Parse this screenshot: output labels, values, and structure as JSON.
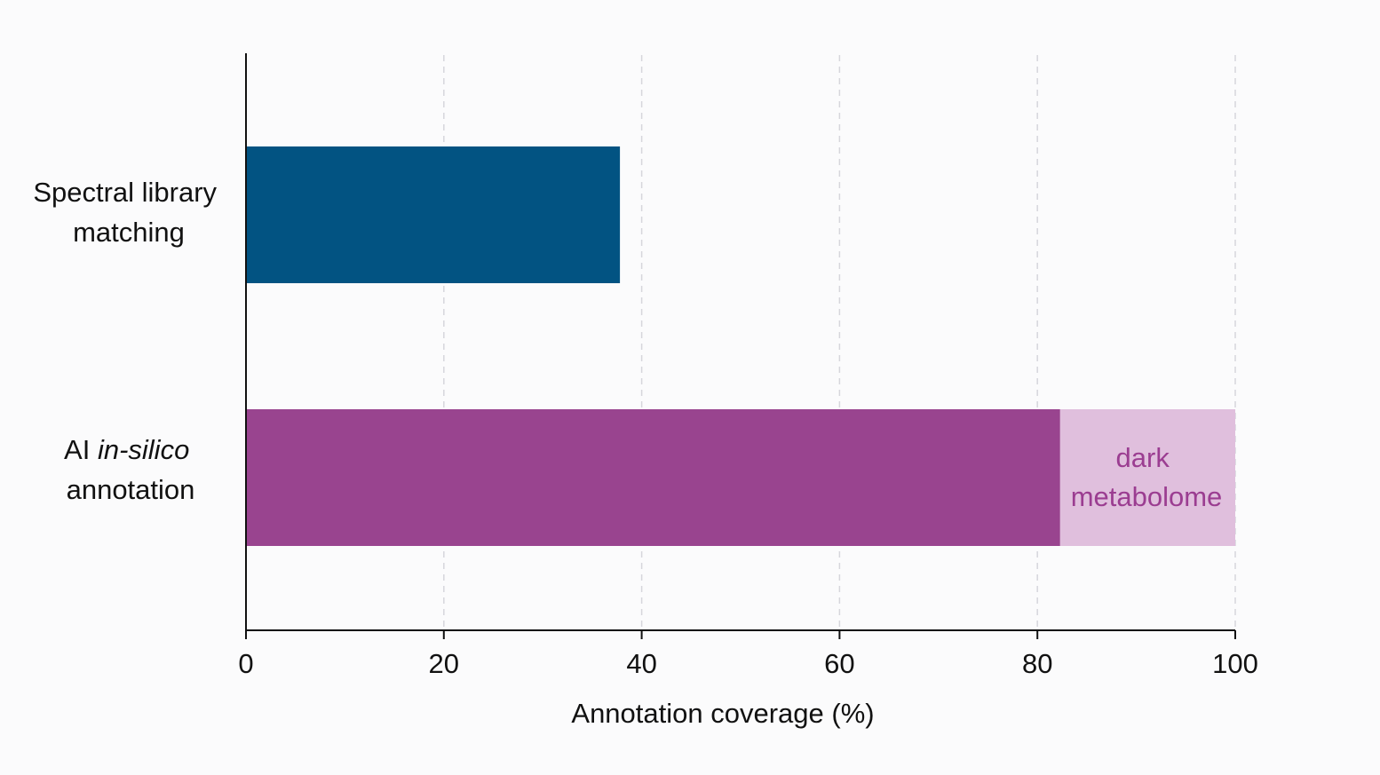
{
  "chart_data": {
    "type": "bar",
    "orientation": "horizontal",
    "stacked": true,
    "xlabel": "Annotation coverage (%)",
    "ylabel": "",
    "title": "",
    "xlim": [
      0,
      100
    ],
    "xticks": [
      "0",
      "20",
      "40",
      "60",
      "80",
      "100"
    ],
    "grid": true,
    "categories": [
      {
        "line1": "Spectral library",
        "line2": "matching",
        "line2_prefix": "",
        "line2_italic": ""
      },
      {
        "line1": "annotation",
        "line2": "",
        "line2_prefix": "AI ",
        "line2_italic": "in-silico"
      }
    ],
    "segments": [
      {
        "category": 0,
        "start": 0,
        "value": 37.8,
        "color": "#025382"
      },
      {
        "category": 1,
        "start": 0,
        "value": 82.3,
        "color": "#99448f"
      },
      {
        "category": 1,
        "start": 82.3,
        "value": 17.7,
        "color": "#e0bfdd"
      }
    ],
    "annotation": {
      "line1": "dark",
      "line2": "metabolome",
      "color": "#9b3d91"
    }
  }
}
